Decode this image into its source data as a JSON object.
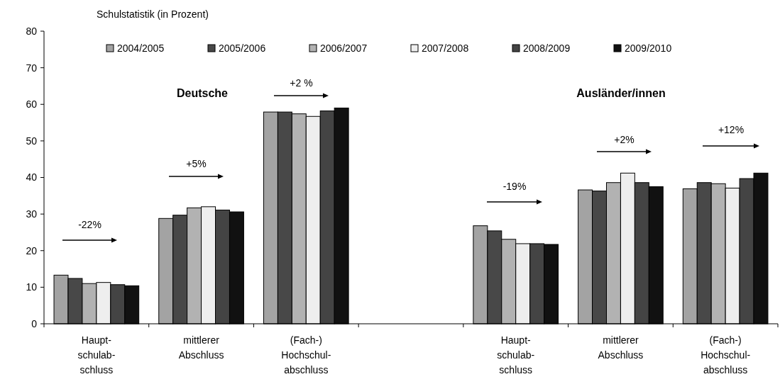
{
  "chart_data": {
    "type": "bar",
    "title": "Schulstatistik (in Prozent)",
    "categories": [
      "Haupt-\nschulab-\nschluss",
      "mittlerer\nAbschluss",
      "(Fach-)\nHochschul-\nabschluss",
      null,
      "Haupt-\nschulab-\nschluss",
      "mittlerer\nAbschluss",
      "(Fach-)\nHochschul-\nabschluss"
    ],
    "series": [
      {
        "name": "2004/2005",
        "color": "#a3a3a3",
        "values": [
          13.3,
          28.8,
          57.9,
          null,
          26.8,
          36.6,
          36.9
        ]
      },
      {
        "name": "2005/2006",
        "color": "#484848",
        "values": [
          12.4,
          29.7,
          57.9,
          null,
          25.4,
          36.3,
          38.6
        ]
      },
      {
        "name": "2006/2007",
        "color": "#b2b2b2",
        "values": [
          11.0,
          31.7,
          57.4,
          null,
          23.1,
          38.6,
          38.3
        ]
      },
      {
        "name": "2007/2008",
        "color": "#eeeeee",
        "values": [
          11.3,
          32.0,
          56.7,
          null,
          21.9,
          41.2,
          37.1
        ]
      },
      {
        "name": "2008/2009",
        "color": "#444444",
        "values": [
          10.7,
          31.1,
          58.2,
          null,
          21.9,
          38.6,
          39.7
        ]
      },
      {
        "name": "2009/2010",
        "color": "#111111",
        "values": [
          10.4,
          30.6,
          59.0,
          null,
          21.7,
          37.5,
          41.2
        ]
      }
    ],
    "ylim": [
      0,
      80
    ],
    "yticks": [
      0,
      10,
      20,
      30,
      40,
      50,
      60,
      70,
      80
    ],
    "legend": "top",
    "annotations": [
      "Deutsche",
      "Ausländer/innen",
      "-22%",
      "+5%",
      "+2 %",
      "-19%",
      "+2%",
      "+12%"
    ]
  }
}
